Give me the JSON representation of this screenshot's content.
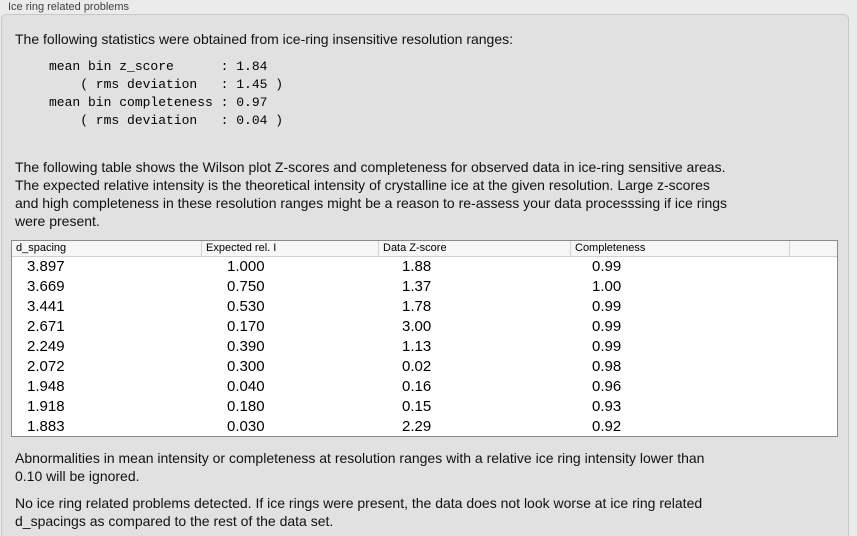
{
  "panel": {
    "title": "Ice ring related problems"
  },
  "intro": "The following statistics were obtained from ice-ring insensitive resolution ranges:",
  "statistics": {
    "mean_bin_z_score": "1.84",
    "z_score_rms_deviation": "1.45",
    "mean_bin_completeness": "0.97",
    "completeness_rms_deviation": "0.04",
    "block_text": "mean bin z_score      : 1.84\n    ( rms deviation   : 1.45 )\nmean bin completeness : 0.97\n    ( rms deviation   : 0.04 )"
  },
  "table_description": "The following table shows the Wilson plot Z-scores and completeness for observed data in ice-ring sensitive areas.\nThe expected relative intensity is the theoretical intensity of crystalline ice at the given resolution. Large z-scores\nand high completeness in these resolution ranges might be a reason to re-assess your data processsing if ice rings\nwere present.",
  "table": {
    "columns": [
      "d_spacing",
      "Expected rel. I",
      "Data Z-score",
      "Completeness"
    ],
    "rows": [
      [
        "3.897",
        "1.000",
        "1.88",
        "0.99"
      ],
      [
        "3.669",
        "0.750",
        "1.37",
        "1.00"
      ],
      [
        "3.441",
        "0.530",
        "1.78",
        "0.99"
      ],
      [
        "2.671",
        "0.170",
        "3.00",
        "0.99"
      ],
      [
        "2.249",
        "0.390",
        "1.13",
        "0.99"
      ],
      [
        "2.072",
        "0.300",
        "0.02",
        "0.98"
      ],
      [
        "1.948",
        "0.040",
        "0.16",
        "0.96"
      ],
      [
        "1.918",
        "0.180",
        "0.15",
        "0.93"
      ],
      [
        "1.883",
        "0.030",
        "2.29",
        "0.92"
      ]
    ]
  },
  "footnote": "Abnormalities in mean intensity or completeness at resolution ranges with a relative ice ring intensity lower than\n0.10 will be ignored.",
  "conclusion": "No ice ring related problems detected. If ice rings were present, the data does not look worse at ice ring related\nd_spacings as compared to the rest of the data set.",
  "colors": {
    "page_bg": "#ebebeb",
    "panel_bg": "#e1e1e1",
    "panel_border": "#c8c8c8",
    "table_border": "#8a8a8a",
    "table_header_bg": "#f6f6f6",
    "header_divider": "#d4d4d4",
    "text": "#111111",
    "title_text": "#3f3f3f"
  }
}
